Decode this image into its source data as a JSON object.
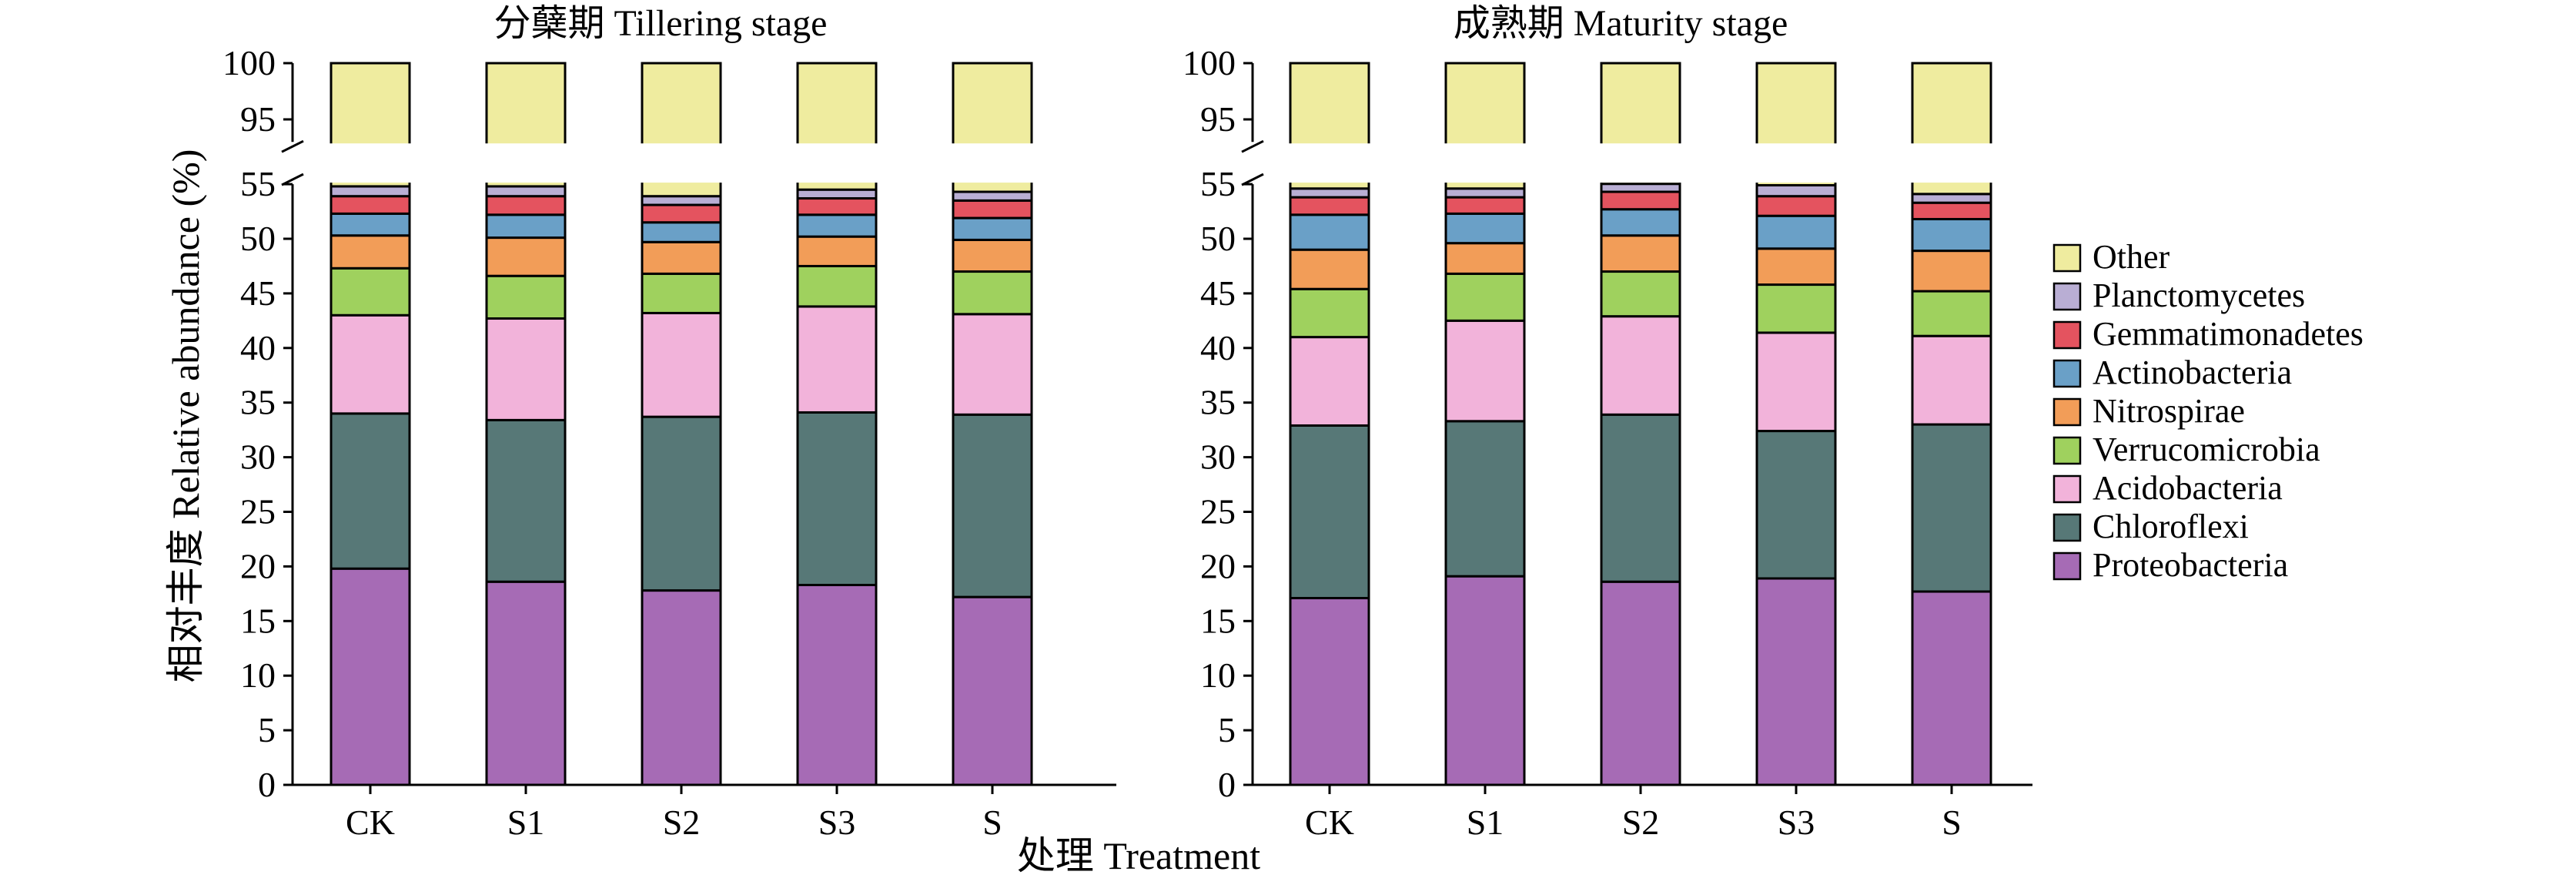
{
  "chart_data": {
    "type": "bar",
    "stacked": true,
    "xlabel": "处理 Treatment",
    "ylabel": "相对丰度 Relative abundance (%)",
    "y_ticks_lower": [
      0,
      5,
      10,
      15,
      20,
      25,
      30,
      35,
      40,
      45,
      50,
      55
    ],
    "y_ticks_upper": [
      95,
      100
    ],
    "y_break": [
      55,
      93
    ],
    "ylim": [
      0,
      100
    ],
    "legend_position": "right",
    "legend": [
      "Other",
      "Planctomycetes",
      "Gemmatimonadetes",
      "Actinobacteria",
      "Nitrospirae",
      "Verrucomicrobia",
      "Acidobacteria",
      "Chloroflexi",
      "Proteobacteria"
    ],
    "colors": {
      "Proteobacteria": "#a66bb5",
      "Chloroflexi": "#577877",
      "Acidobacteria": "#f2b3da",
      "Verrucomicrobia": "#9fd15e",
      "Nitrospirae": "#f29d58",
      "Actinobacteria": "#6aa0c7",
      "Gemmatimonadetes": "#e4535f",
      "Planctomycetes": "#b9aed4",
      "Other": "#efec9f"
    },
    "stack_order": [
      "Proteobacteria",
      "Chloroflexi",
      "Acidobacteria",
      "Verrucomicrobia",
      "Nitrospirae",
      "Actinobacteria",
      "Gemmatimonadetes",
      "Planctomycetes",
      "Other"
    ],
    "panels": [
      {
        "title": "分蘖期 Tillering stage",
        "categories": [
          "CK",
          "S1",
          "S2",
          "S3",
          "S"
        ],
        "series": [
          {
            "name": "Proteobacteria",
            "values": [
              19.8,
              18.6,
              17.8,
              18.3,
              17.2
            ]
          },
          {
            "name": "Chloroflexi",
            "values": [
              14.2,
              14.8,
              15.9,
              15.8,
              16.7
            ]
          },
          {
            "name": "Acidobacteria",
            "values": [
              9.0,
              9.3,
              9.5,
              9.7,
              9.2
            ]
          },
          {
            "name": "Verrucomicrobia",
            "values": [
              4.3,
              3.9,
              3.6,
              3.7,
              3.9
            ]
          },
          {
            "name": "Nitrospirae",
            "values": [
              3.0,
              3.5,
              2.9,
              2.7,
              2.9
            ]
          },
          {
            "name": "Actinobacteria",
            "values": [
              2.0,
              2.1,
              1.8,
              2.0,
              2.0
            ]
          },
          {
            "name": "Gemmatimonadetes",
            "values": [
              1.6,
              1.7,
              1.6,
              1.5,
              1.6
            ]
          },
          {
            "name": "Planctomycetes",
            "values": [
              0.9,
              0.9,
              0.8,
              0.8,
              0.8
            ]
          },
          {
            "name": "Other",
            "values": [
              45.2,
              45.2,
              46.1,
              45.5,
              45.7
            ]
          }
        ]
      },
      {
        "title": "成熟期 Maturity stage",
        "categories": [
          "CK",
          "S1",
          "S2",
          "S3",
          "S"
        ],
        "series": [
          {
            "name": "Proteobacteria",
            "values": [
              17.1,
              19.1,
              18.6,
              18.9,
              17.7
            ]
          },
          {
            "name": "Chloroflexi",
            "values": [
              15.8,
              14.2,
              15.3,
              13.5,
              15.3
            ]
          },
          {
            "name": "Acidobacteria",
            "values": [
              8.1,
              9.2,
              9.0,
              9.0,
              8.1
            ]
          },
          {
            "name": "Verrucomicrobia",
            "values": [
              4.4,
              4.3,
              4.1,
              4.4,
              4.1
            ]
          },
          {
            "name": "Nitrospirae",
            "values": [
              3.6,
              2.8,
              3.3,
              3.3,
              3.7
            ]
          },
          {
            "name": "Actinobacteria",
            "values": [
              3.2,
              2.7,
              2.4,
              3.0,
              2.9
            ]
          },
          {
            "name": "Gemmatimonadetes",
            "values": [
              1.6,
              1.5,
              1.6,
              1.8,
              1.5
            ]
          },
          {
            "name": "Planctomycetes",
            "values": [
              0.8,
              0.8,
              1.0,
              1.0,
              0.8
            ]
          },
          {
            "name": "Other",
            "values": [
              45.4,
              45.4,
              44.7,
              45.1,
              45.9
            ]
          }
        ]
      }
    ]
  }
}
